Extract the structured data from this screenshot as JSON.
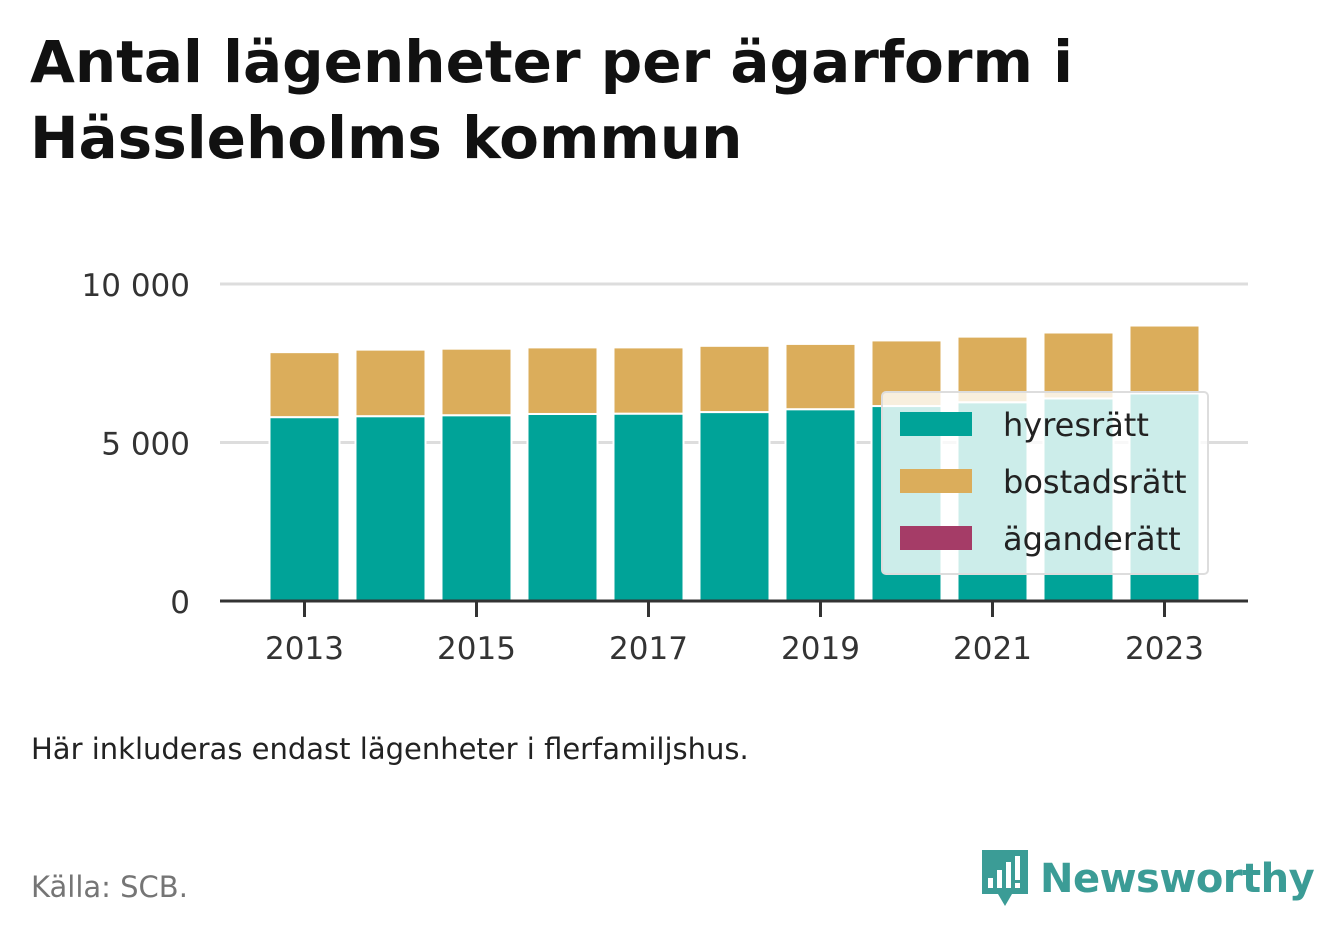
{
  "title": "Antal lägenheter per ägarform i Hässleholms kommun",
  "note": "Här inkluderas endast lägenheter i flerfamiljshus.",
  "source": "Källa: SCB.",
  "brand": "Newsworthy",
  "colors": {
    "hyresratt": "#00a398",
    "bostadsratt": "#dbad5b",
    "aganderatt": "#a53c67",
    "brand": "#3b9c96"
  },
  "chart_data": {
    "type": "bar",
    "stacked": true,
    "categories": [
      "2013",
      "2014",
      "2015",
      "2016",
      "2017",
      "2018",
      "2019",
      "2020",
      "2021",
      "2022",
      "2023"
    ],
    "x_tick_labels": [
      "2013",
      "2015",
      "2017",
      "2019",
      "2021",
      "2023"
    ],
    "y_ticks": [
      0,
      5000,
      10000
    ],
    "y_tick_labels": [
      "0",
      "5 000",
      "10 000"
    ],
    "ylim": [
      0,
      10000
    ],
    "grid": true,
    "legend_position": "right",
    "series": [
      {
        "name": "hyresrätt",
        "values": [
          5800,
          5830,
          5860,
          5900,
          5910,
          5960,
          6050,
          6150,
          6270,
          6390,
          6550
        ]
      },
      {
        "name": "bostadsrätt",
        "values": [
          2050,
          2100,
          2100,
          2100,
          2090,
          2090,
          2060,
          2070,
          2070,
          2080,
          2140
        ]
      },
      {
        "name": "äganderätt",
        "values": [
          0,
          0,
          0,
          0,
          0,
          0,
          0,
          0,
          0,
          0,
          0
        ]
      }
    ]
  }
}
